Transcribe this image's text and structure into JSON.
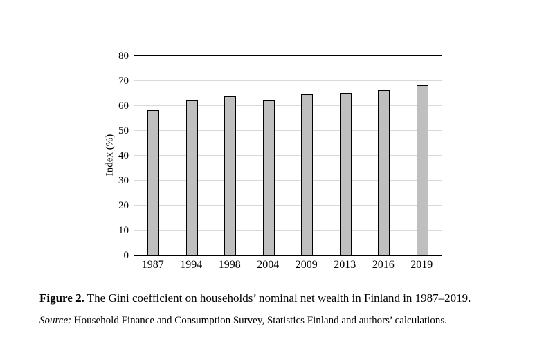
{
  "chart_data": {
    "type": "bar",
    "categories": [
      "1987",
      "1994",
      "1998",
      "2004",
      "2009",
      "2013",
      "2016",
      "2019"
    ],
    "values": [
      58.2,
      62.1,
      63.8,
      62.1,
      64.7,
      65.0,
      66.3,
      68.2
    ],
    "title": "",
    "xlabel": "",
    "ylabel": "Index (%)",
    "ylim": [
      0,
      80
    ],
    "ytick_step": 10,
    "grid": true,
    "legend": "none",
    "bar_fill_color": "#bfbfbf",
    "bar_border_color": "#000000",
    "gridline_color": "#d9d9d9",
    "frame_color": "#000000"
  },
  "caption": {
    "figure_label": "Figure 2.",
    "text": " The Gini coefficient on households’ nominal net wealth in Finland in 1987–2019."
  },
  "source": {
    "label": "Source:",
    "text": " Household Finance and Consumption Survey, Statistics Finland and authors’ calculations."
  }
}
